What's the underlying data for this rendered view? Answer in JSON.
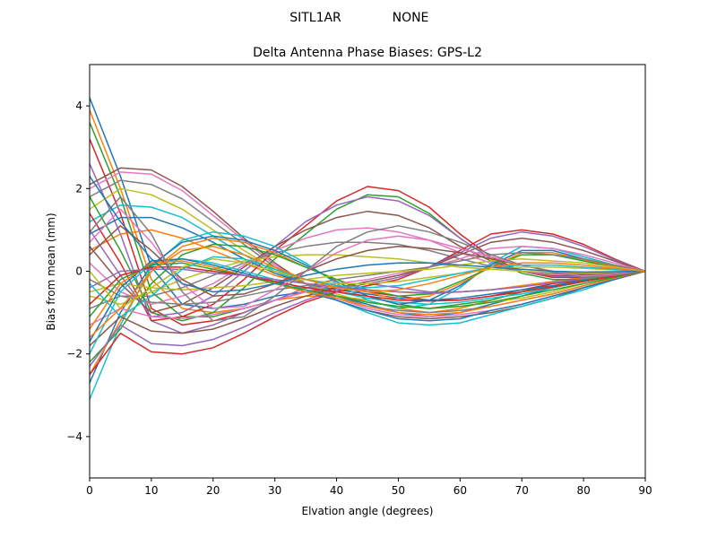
{
  "chart_data": {
    "type": "line",
    "suptitle_left": "SITL1AR",
    "suptitle_right": "NONE",
    "title": "Delta Antenna Phase Biases: GPS-L2",
    "xlabel": "Elvation angle (degrees)",
    "ylabel": "Bias from mean (mm)",
    "xlim": [
      0,
      90
    ],
    "ylim": [
      -5,
      5
    ],
    "xticks": [
      0,
      10,
      20,
      30,
      40,
      50,
      60,
      70,
      80,
      90
    ],
    "yticks": [
      -4,
      -2,
      0,
      2,
      4
    ],
    "ytick_labels": [
      "−4",
      "−2",
      "0",
      "2",
      "4"
    ],
    "grid": false,
    "legend": "none",
    "colors": [
      "#1f77b4",
      "#ff7f0e",
      "#2ca02c",
      "#d62728",
      "#9467bd",
      "#8c564b",
      "#e377c2",
      "#7f7f7f",
      "#bcbd22",
      "#17becf"
    ],
    "x": [
      0,
      5,
      10,
      15,
      20,
      25,
      30,
      35,
      40,
      45,
      50,
      55,
      60,
      65,
      70,
      75,
      80,
      85,
      90
    ],
    "series": [
      {
        "values": [
          4.2,
          2.3,
          0.1,
          -0.8,
          -0.9,
          -0.8,
          -0.6,
          -0.5,
          -0.6,
          -0.8,
          -1.0,
          -1.1,
          -1.0,
          -0.8,
          -0.6,
          -0.4,
          -0.25,
          -0.1,
          0
        ]
      },
      {
        "values": [
          3.9,
          2.0,
          -0.2,
          -0.9,
          -1.0,
          -0.9,
          -0.7,
          -0.6,
          -0.6,
          -0.7,
          -0.9,
          -1.0,
          -0.9,
          -0.7,
          -0.5,
          -0.35,
          -0.2,
          -0.1,
          0
        ]
      },
      {
        "values": [
          3.6,
          1.8,
          -0.5,
          -1.1,
          -1.1,
          -0.9,
          -0.7,
          -0.5,
          -0.5,
          -0.6,
          -0.8,
          -0.9,
          -0.8,
          -0.7,
          -0.5,
          -0.3,
          -0.2,
          -0.1,
          0
        ]
      },
      {
        "values": [
          3.2,
          1.4,
          -0.9,
          -1.3,
          -1.2,
          -1.0,
          -0.7,
          -0.5,
          -0.4,
          -0.5,
          -0.6,
          -0.7,
          -0.7,
          -0.6,
          -0.45,
          -0.3,
          -0.2,
          -0.08,
          0
        ]
      },
      {
        "values": [
          2.6,
          0.9,
          -1.2,
          -1.5,
          -1.3,
          -1.0,
          -0.7,
          -0.4,
          -0.3,
          -0.3,
          -0.4,
          -0.5,
          -0.5,
          -0.45,
          -0.35,
          -0.25,
          -0.15,
          -0.07,
          0
        ]
      },
      {
        "values": [
          2.1,
          2.5,
          2.45,
          2.05,
          1.45,
          0.8,
          0.2,
          -0.3,
          -0.7,
          -0.95,
          -1.1,
          -1.15,
          -1.1,
          -1.0,
          -0.85,
          -0.65,
          -0.4,
          -0.2,
          0
        ]
      },
      {
        "values": [
          2.0,
          2.4,
          2.35,
          1.95,
          1.35,
          0.75,
          0.15,
          -0.3,
          -0.65,
          -0.9,
          -1.05,
          -1.1,
          -1.05,
          -0.95,
          -0.8,
          -0.6,
          -0.4,
          -0.2,
          0
        ]
      },
      {
        "values": [
          1.8,
          2.2,
          2.1,
          1.75,
          1.2,
          0.65,
          0.1,
          -0.3,
          -0.6,
          -0.85,
          -0.95,
          -1.0,
          -0.95,
          -0.85,
          -0.7,
          -0.55,
          -0.35,
          -0.17,
          0
        ]
      },
      {
        "values": [
          1.5,
          2.0,
          1.85,
          1.5,
          1.0,
          0.5,
          0.05,
          -0.3,
          -0.55,
          -0.75,
          -0.85,
          -0.9,
          -0.85,
          -0.75,
          -0.65,
          -0.5,
          -0.3,
          -0.15,
          0
        ]
      },
      {
        "values": [
          1.2,
          1.6,
          1.55,
          1.3,
          0.85,
          0.4,
          0.0,
          -0.3,
          -0.5,
          -0.65,
          -0.75,
          -0.8,
          -0.75,
          -0.65,
          -0.55,
          -0.4,
          -0.25,
          -0.12,
          0
        ]
      },
      {
        "values": [
          0.9,
          1.3,
          1.3,
          1.05,
          0.7,
          0.3,
          -0.05,
          -0.3,
          -0.45,
          -0.55,
          -0.65,
          -0.7,
          -0.65,
          -0.55,
          -0.45,
          -0.35,
          -0.22,
          -0.1,
          0
        ]
      },
      {
        "values": [
          0.5,
          0.9,
          1.0,
          0.8,
          0.5,
          0.2,
          -0.1,
          -0.3,
          -0.4,
          -0.45,
          -0.5,
          -0.55,
          -0.5,
          -0.45,
          -0.35,
          -0.25,
          -0.15,
          -0.07,
          0
        ]
      },
      {
        "values": [
          1.8,
          0.5,
          -1.0,
          -1.2,
          -1.0,
          -0.4,
          0.3,
          0.9,
          1.5,
          1.85,
          1.8,
          1.4,
          0.8,
          0.3,
          -0.05,
          -0.2,
          -0.2,
          -0.1,
          0
        ]
      },
      {
        "values": [
          1.4,
          0.2,
          -1.2,
          -1.1,
          -0.8,
          -0.2,
          0.5,
          1.1,
          1.7,
          2.05,
          1.95,
          1.55,
          0.9,
          0.35,
          0.0,
          -0.15,
          -0.15,
          -0.08,
          0
        ]
      },
      {
        "values": [
          1.0,
          -0.1,
          -1.1,
          -1.0,
          -0.6,
          0.0,
          0.6,
          1.2,
          1.6,
          1.8,
          1.7,
          1.35,
          0.8,
          0.3,
          0.0,
          -0.12,
          -0.13,
          -0.07,
          0
        ]
      },
      {
        "values": [
          0.6,
          -0.3,
          -1.0,
          -0.8,
          -0.4,
          0.1,
          0.6,
          1.0,
          1.3,
          1.45,
          1.35,
          1.05,
          0.6,
          0.25,
          0.0,
          -0.1,
          -0.1,
          -0.05,
          0
        ]
      },
      {
        "values": [
          0.2,
          -0.5,
          -0.8,
          -0.6,
          -0.3,
          0.15,
          0.5,
          0.8,
          1.0,
          1.05,
          0.95,
          0.75,
          0.45,
          0.2,
          0.0,
          -0.08,
          -0.08,
          -0.04,
          0
        ]
      },
      {
        "values": [
          -0.2,
          -0.6,
          -0.6,
          -0.4,
          -0.1,
          0.2,
          0.45,
          0.6,
          0.7,
          0.7,
          0.65,
          0.5,
          0.3,
          0.12,
          0.0,
          -0.05,
          -0.06,
          -0.03,
          0
        ]
      },
      {
        "values": [
          -0.6,
          -0.8,
          -0.5,
          -0.2,
          0.05,
          0.25,
          0.35,
          0.4,
          0.4,
          0.35,
          0.3,
          0.2,
          0.1,
          0.05,
          0.0,
          -0.03,
          -0.04,
          -0.02,
          0
        ]
      },
      {
        "values": [
          -3.1,
          -1.3,
          0.1,
          0.75,
          0.95,
          0.85,
          0.6,
          0.2,
          -0.3,
          -0.7,
          -0.9,
          -0.8,
          -0.4,
          0.2,
          0.6,
          0.55,
          0.35,
          0.15,
          0
        ]
      },
      {
        "values": [
          -2.7,
          -1.0,
          0.15,
          0.7,
          0.85,
          0.75,
          0.5,
          0.15,
          -0.25,
          -0.6,
          -0.8,
          -0.7,
          -0.35,
          0.15,
          0.5,
          0.5,
          0.3,
          0.13,
          0
        ]
      },
      {
        "values": [
          -2.5,
          -1.2,
          0.0,
          0.6,
          0.8,
          0.7,
          0.45,
          0.1,
          -0.2,
          -0.5,
          -0.7,
          -0.6,
          -0.3,
          0.1,
          0.45,
          0.45,
          0.28,
          0.12,
          0
        ]
      },
      {
        "values": [
          -2.2,
          -1.4,
          -0.3,
          0.4,
          0.65,
          0.6,
          0.4,
          0.1,
          -0.2,
          -0.45,
          -0.6,
          -0.55,
          -0.25,
          0.1,
          0.4,
          0.4,
          0.25,
          0.1,
          0
        ]
      },
      {
        "values": [
          -2.5,
          -1.5,
          -1.95,
          -2.0,
          -1.85,
          -1.5,
          -1.1,
          -0.75,
          -0.5,
          -0.35,
          -0.2,
          0.1,
          0.5,
          0.9,
          1.0,
          0.9,
          0.65,
          0.3,
          0
        ]
      },
      {
        "values": [
          -2.3,
          -1.3,
          -1.75,
          -1.8,
          -1.65,
          -1.35,
          -1.0,
          -0.7,
          -0.45,
          -0.3,
          -0.15,
          0.1,
          0.45,
          0.8,
          0.95,
          0.85,
          0.6,
          0.28,
          0
        ]
      },
      {
        "values": [
          -1.8,
          -1.1,
          -1.45,
          -1.5,
          -1.4,
          -1.15,
          -0.85,
          -0.6,
          -0.4,
          -0.25,
          -0.1,
          0.1,
          0.4,
          0.7,
          0.8,
          0.7,
          0.5,
          0.25,
          0
        ]
      },
      {
        "values": [
          -1.3,
          -0.9,
          -1.1,
          -1.15,
          -1.05,
          -0.9,
          -0.7,
          -0.5,
          -0.3,
          -0.2,
          -0.05,
          0.1,
          0.3,
          0.55,
          0.6,
          0.55,
          0.4,
          0.2,
          0
        ]
      },
      {
        "values": [
          -0.9,
          -0.6,
          -0.75,
          -0.8,
          -0.75,
          -0.6,
          -0.45,
          -0.35,
          -0.2,
          -0.1,
          0.0,
          0.1,
          0.25,
          0.4,
          0.45,
          0.4,
          0.3,
          0.15,
          0
        ]
      },
      {
        "values": [
          -0.5,
          -0.3,
          -0.4,
          -0.45,
          -0.4,
          -0.35,
          -0.25,
          -0.2,
          -0.1,
          -0.05,
          0.0,
          0.05,
          0.15,
          0.25,
          0.3,
          0.25,
          0.2,
          0.1,
          0
        ]
      },
      {
        "values": [
          -2.0,
          -0.5,
          0.2,
          0.3,
          0.2,
          0.0,
          -0.2,
          -0.45,
          -0.7,
          -1.0,
          -1.25,
          -1.3,
          -1.25,
          -1.05,
          -0.85,
          -0.65,
          -0.45,
          -0.2,
          0
        ]
      },
      {
        "values": [
          -1.7,
          -0.4,
          0.25,
          0.3,
          0.15,
          -0.05,
          -0.25,
          -0.5,
          -0.7,
          -0.95,
          -1.15,
          -1.2,
          -1.15,
          -0.95,
          -0.8,
          -0.6,
          -0.4,
          -0.2,
          0
        ]
      },
      {
        "values": [
          -1.4,
          -0.3,
          0.2,
          0.25,
          0.1,
          -0.1,
          -0.3,
          -0.5,
          -0.65,
          -0.85,
          -1.0,
          -1.05,
          -1.0,
          -0.85,
          -0.7,
          -0.55,
          -0.35,
          -0.17,
          0
        ]
      },
      {
        "values": [
          -1.1,
          -0.2,
          0.15,
          0.2,
          0.05,
          -0.1,
          -0.3,
          -0.45,
          -0.6,
          -0.75,
          -0.85,
          -0.9,
          -0.85,
          -0.75,
          -0.6,
          -0.45,
          -0.3,
          -0.15,
          0
        ]
      },
      {
        "values": [
          -0.8,
          -0.1,
          0.1,
          0.1,
          0.0,
          -0.1,
          -0.25,
          -0.4,
          -0.5,
          -0.6,
          -0.7,
          -0.72,
          -0.7,
          -0.6,
          -0.5,
          -0.38,
          -0.25,
          -0.12,
          0
        ]
      },
      {
        "values": [
          -0.4,
          0.0,
          0.05,
          0.05,
          -0.05,
          -0.1,
          -0.2,
          -0.3,
          -0.38,
          -0.45,
          -0.5,
          -0.52,
          -0.5,
          -0.45,
          -0.38,
          -0.28,
          -0.18,
          -0.09,
          0
        ]
      },
      {
        "values": [
          0.4,
          1.1,
          0.5,
          -0.2,
          -0.6,
          -0.55,
          -0.3,
          0.0,
          0.3,
          0.5,
          0.6,
          0.55,
          0.45,
          0.3,
          0.15,
          0.0,
          -0.1,
          -0.08,
          0
        ]
      },
      {
        "values": [
          0.7,
          1.5,
          0.7,
          -0.3,
          -0.9,
          -0.85,
          -0.45,
          0.0,
          0.45,
          0.75,
          0.85,
          0.75,
          0.55,
          0.35,
          0.15,
          0.0,
          -0.12,
          -0.08,
          0
        ]
      },
      {
        "values": [
          0.95,
          1.8,
          0.9,
          -0.5,
          -1.2,
          -1.1,
          -0.6,
          0.0,
          0.6,
          0.95,
          1.1,
          0.95,
          0.7,
          0.4,
          0.15,
          -0.02,
          -0.15,
          -0.1,
          0
        ]
      },
      {
        "values": [
          0.0,
          -0.9,
          -0.4,
          0.1,
          0.3,
          0.2,
          0.0,
          -0.2,
          -0.3,
          -0.3,
          -0.25,
          -0.15,
          -0.05,
          0.05,
          0.1,
          0.1,
          0.07,
          0.03,
          0
        ]
      },
      {
        "values": [
          -0.3,
          -1.1,
          -0.6,
          0.05,
          0.35,
          0.3,
          0.05,
          -0.2,
          -0.35,
          -0.4,
          -0.35,
          -0.2,
          -0.05,
          0.1,
          0.15,
          0.15,
          0.1,
          0.05,
          0
        ]
      },
      {
        "values": [
          2.3,
          1.2,
          0.3,
          -0.3,
          -0.5,
          -0.45,
          -0.3,
          -0.1,
          0.05,
          0.15,
          0.2,
          0.2,
          0.15,
          0.1,
          0.05,
          0.0,
          -0.02,
          -0.01,
          0
        ]
      },
      {
        "values": [
          -1.6,
          -0.9,
          0.0,
          0.5,
          0.6,
          0.4,
          0.1,
          -0.2,
          -0.4,
          -0.5,
          -0.45,
          -0.3,
          -0.1,
          0.1,
          0.2,
          0.2,
          0.15,
          0.07,
          0
        ]
      }
    ]
  }
}
